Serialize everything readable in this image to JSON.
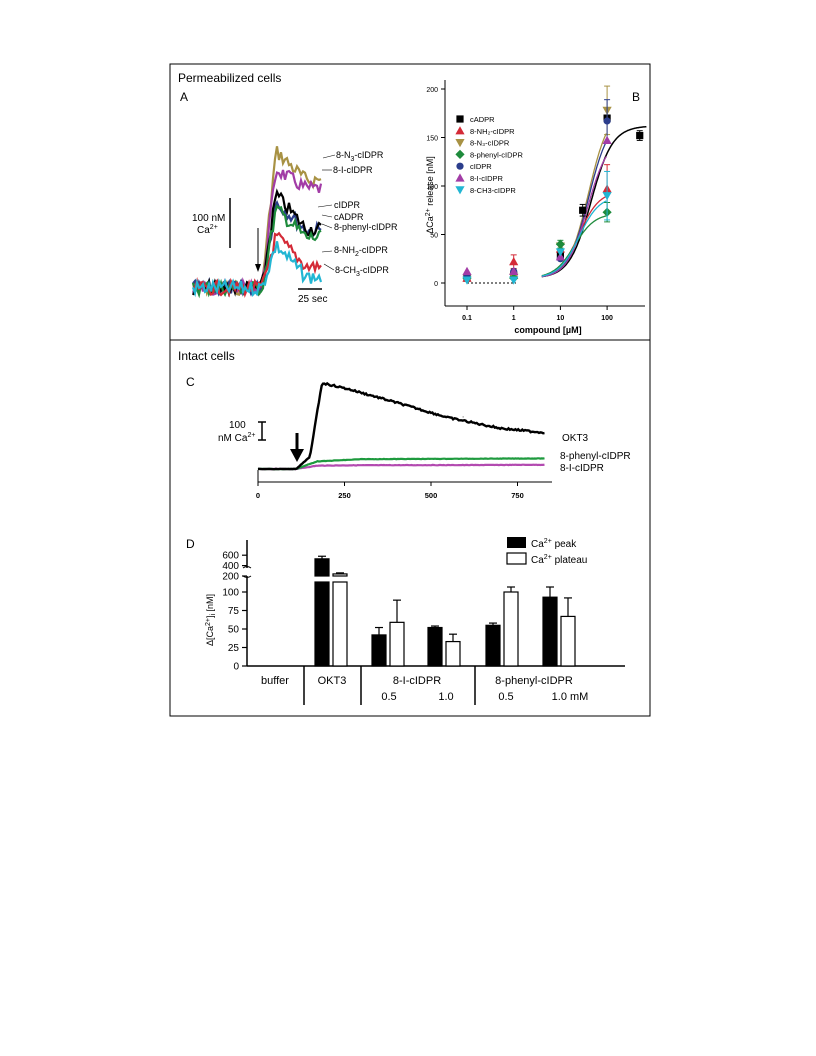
{
  "figure": {
    "section_top": "Permeabilized cells",
    "section_bottom": "Intact cells",
    "panel_letters": [
      "A",
      "B",
      "C",
      "D"
    ]
  },
  "colors": {
    "black": "#000000",
    "red": "#d42a37",
    "tan": "#a89244",
    "green": "#1e8b3c",
    "blue": "#2b3d8c",
    "purple": "#a23ca6",
    "cyan": "#22b6d3",
    "okt3": "#000000",
    "phenyl": "#1e9a3e",
    "iodo": "#b34ab0"
  },
  "panelA": {
    "scale_value": "100 nM",
    "scale_unit": "Ca",
    "scale_sup": "2+",
    "time_scale": "25 sec",
    "labels": {
      "n3": {
        "pre": "8-N",
        "sub": "3",
        "post": "-cIDPR"
      },
      "iodo": "8-I-cIDPR",
      "cidpr": "cIDPR",
      "cadpr": "cADPR",
      "phenyl": "8-phenyl-cIDPR",
      "nh2": {
        "pre": "8-NH",
        "sub": "2",
        "post": "-cIDPR"
      },
      "ch3": {
        "pre": "8-CH",
        "sub": "3",
        "post": "-cIDPR"
      }
    }
  },
  "panelB": {
    "ylabel_pre": "ΔCa",
    "ylabel_sup": "2+",
    "ylabel_post": " release [nM]",
    "xlabel": "compound [µM]",
    "legend": [
      {
        "label": "cADPR",
        "marker": "square",
        "color": "#000000"
      },
      {
        "label": "8-NH₂-cIDPR",
        "marker": "triangle-up",
        "color": "#d42a37"
      },
      {
        "label": "8-N₃-cIDPR",
        "marker": "triangle-down",
        "color": "#a89244"
      },
      {
        "label": "8-phenyl-cIDPR",
        "marker": "diamond",
        "color": "#1e8b3c"
      },
      {
        "label": "cIDPR",
        "marker": "circle",
        "color": "#2b3d8c"
      },
      {
        "label": "8-I-cIDPR",
        "marker": "triangle-up",
        "color": "#a23ca6"
      },
      {
        "label": "8-CH3-cIDPR",
        "marker": "triangle-down",
        "color": "#22b6d3"
      }
    ]
  },
  "panelC": {
    "scale_value": "100",
    "scale_unit": "nM Ca",
    "scale_sup": "2+",
    "labels": {
      "okt3": "OKT3",
      "phenyl": "8-phenyl-cIDPR",
      "iodo": "8-I-cIDPR"
    },
    "dot": ":"
  },
  "panelD": {
    "ylabel_pre": "Δ[Ca",
    "ylabel_sup": "2+",
    "ylabel_mid": "]",
    "ylabel_sub": "i",
    "ylabel_post": " [nM]",
    "legend_peak": "peak",
    "legend_plateau": "plateau",
    "legend_ion": "Ca",
    "legend_sup": "2+",
    "groups": {
      "buffer": "buffer",
      "okt3": "OKT3",
      "iodo": "8-I-cIDPR",
      "phenyl": "8-phenyl-cIDPR"
    },
    "conc": {
      "iodo_a": "0.5",
      "iodo_b": "1.0",
      "phenyl_a": "0.5",
      "phenyl_b": "1.0 mM"
    }
  },
  "chart_data": [
    {
      "type": "line",
      "panel": "A",
      "series": [
        {
          "name": "8-N3-cIDPR",
          "color": "#a89244",
          "baseline": 0,
          "peak": 190,
          "plateau": 150
        },
        {
          "name": "8-I-cIDPR",
          "color": "#a23ca6",
          "baseline": 0,
          "peak": 165,
          "plateau": 138
        },
        {
          "name": "cIDPR",
          "color": "#2b3d8c",
          "baseline": 0,
          "peak": 120,
          "plateau": 80
        },
        {
          "name": "cADPR",
          "color": "#000000",
          "baseline": 0,
          "peak": 130,
          "plateau": 82
        },
        {
          "name": "8-phenyl-cIDPR",
          "color": "#1e8b3c",
          "baseline": 0,
          "peak": 110,
          "plateau": 70
        },
        {
          "name": "8-NH2-cIDPR",
          "color": "#d42a37",
          "baseline": 0,
          "peak": 72,
          "plateau": 30
        },
        {
          "name": "8-CH3-cIDPR",
          "color": "#22b6d3",
          "baseline": 0,
          "peak": 60,
          "plateau": 15
        }
      ]
    },
    {
      "type": "scatter",
      "panel": "B",
      "x_scale": "log",
      "x_ticks": [
        "0.1",
        "1",
        "10",
        "100"
      ],
      "y_ticks": [
        "0",
        "50",
        "100",
        "150",
        "200"
      ],
      "ylim": [
        -20,
        210
      ],
      "series": [
        {
          "name": "cADPR",
          "color": "#000000",
          "marker": "square",
          "points": [
            [
              0.1,
              5,
              0
            ],
            [
              1,
              8,
              0
            ],
            [
              10,
              28,
              0
            ],
            [
              30,
              75,
              6
            ],
            [
              100,
              170,
              0
            ],
            [
              500,
              152,
              5
            ]
          ]
        },
        {
          "name": "8-NH₂-cIDPR",
          "color": "#d42a37",
          "marker": "triangle-up",
          "points": [
            [
              0.1,
              5,
              0
            ],
            [
              1,
              22,
              7
            ],
            [
              10,
              35,
              0
            ],
            [
              100,
              97,
              25
            ]
          ]
        },
        {
          "name": "8-N₃-cIDPR",
          "color": "#a89244",
          "marker": "triangle-down",
          "points": [
            [
              0.1,
              5,
              0
            ],
            [
              1,
              6,
              0
            ],
            [
              10,
              38,
              0
            ],
            [
              100,
              178,
              25
            ]
          ]
        },
        {
          "name": "8-phenyl-cIDPR",
          "color": "#1e8b3c",
          "marker": "diamond",
          "points": [
            [
              0.1,
              5,
              0
            ],
            [
              1,
              5,
              0
            ],
            [
              10,
              40,
              4
            ],
            [
              100,
              73,
              10
            ]
          ]
        },
        {
          "name": "cIDPR",
          "color": "#2b3d8c",
          "marker": "circle",
          "points": [
            [
              0.1,
              7,
              0
            ],
            [
              1,
              12,
              0
            ],
            [
              10,
              25,
              0
            ],
            [
              100,
              167,
              22
            ]
          ]
        },
        {
          "name": "8-I-cIDPR",
          "color": "#a23ca6",
          "marker": "triangle-up",
          "points": [
            [
              0.1,
              12,
              0
            ],
            [
              1,
              12,
              0
            ],
            [
              10,
              27,
              0
            ],
            [
              100,
              147,
              0
            ]
          ]
        },
        {
          "name": "8-CH3-cIDPR",
          "color": "#22b6d3",
          "marker": "triangle-down",
          "points": [
            [
              0.1,
              3,
              0
            ],
            [
              1,
              3,
              0
            ],
            [
              10,
              32,
              0
            ],
            [
              100,
              90,
              25
            ]
          ]
        }
      ]
    },
    {
      "type": "line",
      "panel": "C",
      "x_ticks": [
        "0",
        "250",
        "500",
        "750"
      ],
      "series": [
        {
          "name": "OKT3",
          "points": [
            [
              0,
              0
            ],
            [
              110,
              0
            ],
            [
              150,
              80
            ],
            [
              185,
              570
            ],
            [
              260,
              530
            ],
            [
              400,
              440
            ],
            [
              550,
              340
            ],
            [
              700,
              270
            ],
            [
              830,
              240
            ]
          ]
        },
        {
          "name": "8-phenyl-cIDPR",
          "points": [
            [
              0,
              0
            ],
            [
              110,
              0
            ],
            [
              170,
              50
            ],
            [
              300,
              65
            ],
            [
              600,
              68
            ],
            [
              830,
              70
            ]
          ]
        },
        {
          "name": "8-I-cIDPR",
          "points": [
            [
              0,
              0
            ],
            [
              110,
              0
            ],
            [
              170,
              22
            ],
            [
              300,
              25
            ],
            [
              600,
              26
            ],
            [
              830,
              28
            ]
          ]
        }
      ]
    },
    {
      "type": "bar",
      "panel": "D",
      "categories": [
        "buffer",
        "OKT3",
        "8-I-cIDPR 0.5",
        "8-I-cIDPR 1.0",
        "8-phenyl-cIDPR 0.5",
        "8-phenyl-cIDPR 1.0 mM"
      ],
      "y_ticks_lower": [
        "0",
        "25",
        "50",
        "75",
        "100"
      ],
      "y_ticks_upper": [
        "200",
        "400",
        "600"
      ],
      "series": [
        {
          "name": "Ca2+ peak",
          "values": [
            0,
            530,
            42,
            52,
            55,
            93
          ],
          "errors": [
            0,
            50,
            10,
            2,
            3,
            17
          ]
        },
        {
          "name": "Ca2+ plateau",
          "values": [
            0,
            240,
            59,
            33,
            100,
            67
          ],
          "errors": [
            0,
            20,
            30,
            10,
            20,
            25
          ]
        }
      ]
    }
  ]
}
